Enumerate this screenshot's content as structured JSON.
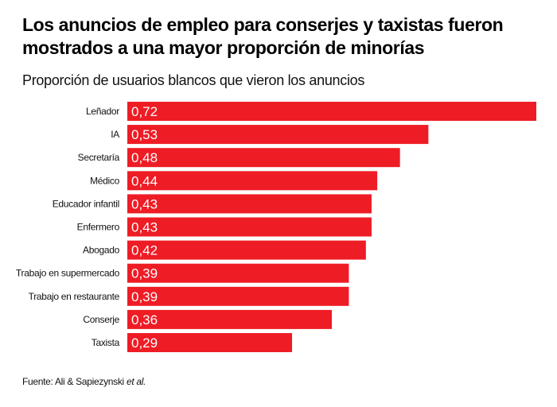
{
  "chart_data": {
    "type": "bar",
    "orientation": "horizontal",
    "title": "Los anuncios de empleo para conserjes y taxistas fueron mostrados a una mayor proporción de minorías",
    "subtitle": "Proporción de usuarios blancos que vieron los anuncios",
    "categories": [
      "Leñador",
      "IA",
      "Secretaría",
      "Médico",
      "Educador infantil",
      "Enfermero",
      "Abogado",
      "Trabajo en supermercado",
      "Trabajo en restaurante",
      "Conserje",
      "Taxista"
    ],
    "values": [
      0.72,
      0.53,
      0.48,
      0.44,
      0.43,
      0.43,
      0.42,
      0.39,
      0.39,
      0.36,
      0.29
    ],
    "value_labels": [
      "0,72",
      "0,53",
      "0,48",
      "0,44",
      "0,43",
      "0,43",
      "0,42",
      "0,39",
      "0,39",
      "0,36",
      "0,29"
    ],
    "xlim": [
      0,
      0.72
    ],
    "grid": false,
    "legend": "none",
    "bar_color": "#ee1c25"
  },
  "source": {
    "prefix": "Fuente: Ali & Sapiezynski ",
    "emphasis": "et al."
  }
}
